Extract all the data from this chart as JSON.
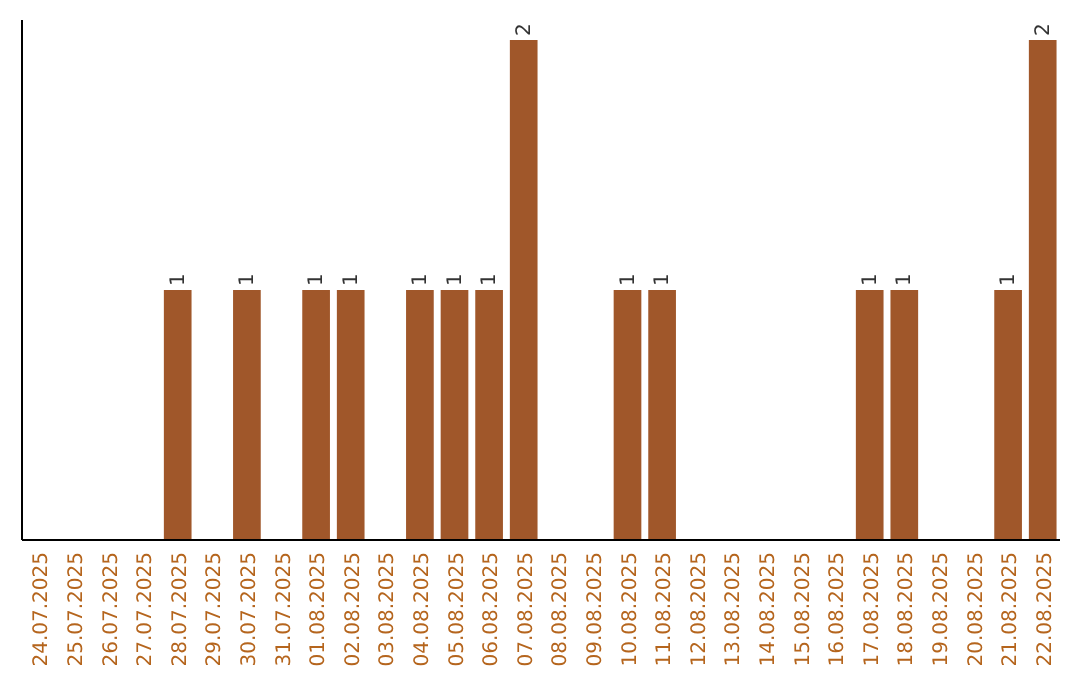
{
  "chart_data": {
    "type": "bar",
    "categories": [
      "24.07.2025",
      "25.07.2025",
      "26.07.2025",
      "27.07.2025",
      "28.07.2025",
      "29.07.2025",
      "30.07.2025",
      "31.07.2025",
      "01.08.2025",
      "02.08.2025",
      "03.08.2025",
      "04.08.2025",
      "05.08.2025",
      "06.08.2025",
      "07.08.2025",
      "08.08.2025",
      "09.08.2025",
      "10.08.2025",
      "11.08.2025",
      "12.08.2025",
      "13.08.2025",
      "14.08.2025",
      "15.08.2025",
      "16.08.2025",
      "17.08.2025",
      "18.08.2025",
      "19.08.2025",
      "20.08.2025",
      "21.08.2025",
      "22.08.2025"
    ],
    "values": [
      0,
      0,
      0,
      0,
      1,
      0,
      1,
      0,
      1,
      1,
      0,
      1,
      1,
      1,
      2,
      0,
      0,
      1,
      1,
      0,
      0,
      0,
      0,
      0,
      1,
      1,
      0,
      0,
      1,
      2
    ],
    "value_labels": [
      null,
      null,
      null,
      null,
      "1",
      null,
      "1",
      null,
      "1",
      "1",
      null,
      "1",
      "1",
      "1",
      "2",
      null,
      null,
      "1",
      "1",
      null,
      null,
      null,
      null,
      null,
      "1",
      "1",
      null,
      null,
      "1",
      "2"
    ],
    "color": "#a0572a",
    "tick_labels": "x"
  }
}
